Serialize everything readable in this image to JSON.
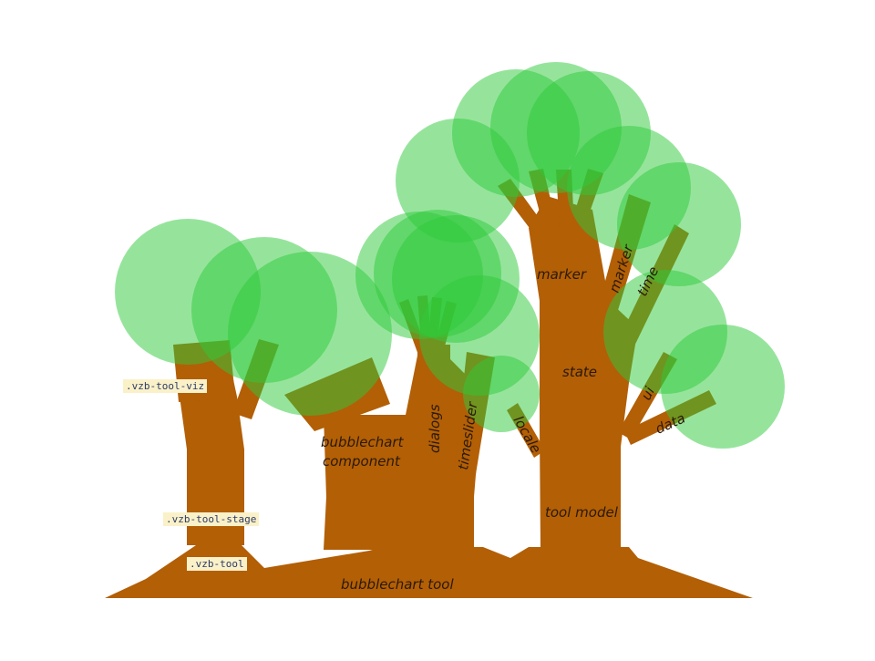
{
  "colors": {
    "trunk": "#b35f06",
    "foliage": "#2ec93a",
    "foliage_overlap": "#6a8a1e",
    "code_bg": "#fbf1c8",
    "code_text": "#2b3a66"
  },
  "labels": {
    "bubblechart_tool": "bubblechart tool",
    "bubblechart_component_line1": "bubblechart",
    "bubblechart_component_line2": "component",
    "dialogs": "dialogs",
    "timeslider": "timeslider",
    "marker_left": "marker",
    "marker_branch": "marker",
    "time": "time",
    "state": "state",
    "ui": "ui",
    "data": "data",
    "locale": "locale",
    "tool_model": "tool model"
  },
  "code_tags": {
    "viz": ".vzb-tool-viz",
    "stage": ".vzb-tool-stage",
    "tool": ".vzb-tool"
  }
}
